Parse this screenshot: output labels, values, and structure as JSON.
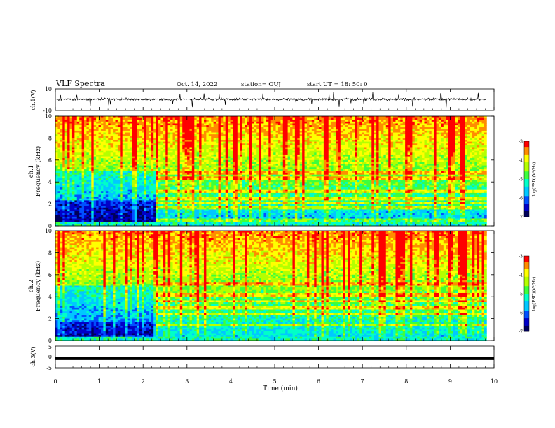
{
  "header": {
    "title": "VLF Spectra",
    "date": "Oct. 14, 2022",
    "station": "station= OUJ",
    "start": "start UT =  18: 50: 0"
  },
  "chart_data": [
    {
      "type": "line",
      "name": "ch1-waveform",
      "ylabel": "ch.1(V)",
      "yticks": [
        "10",
        "-10"
      ],
      "ylim": [
        -10,
        10
      ],
      "xlim": [
        0,
        10
      ],
      "description_values": {
        "baseline": 0,
        "typical_amplitude": 1.5,
        "spike_amplitude": 8
      }
    },
    {
      "type": "heatmap",
      "name": "ch1-spectrogram",
      "ylabel_line1": "ch.1",
      "ylabel_line2": "Frequency (kHz)",
      "xlim": [
        0,
        9.83
      ],
      "ylim": [
        0,
        10
      ],
      "yticks": [
        "0",
        "2",
        "4",
        "6",
        "8",
        "10"
      ],
      "colorbar": {
        "label": "log(PSD)(V²/Hz)",
        "ticks": [
          "-3",
          "-4",
          "-5",
          "-6",
          "-7"
        ],
        "range": [
          -7,
          -3
        ]
      },
      "regime_change_min": 2.25,
      "bands_khz": [
        0.5,
        1.7,
        2.1,
        2.5,
        3.2,
        4.3,
        4.8
      ]
    },
    {
      "type": "heatmap",
      "name": "ch2-spectrogram",
      "ylabel_line1": "ch.2",
      "ylabel_line2": "Frequency (kHz)",
      "xlim": [
        0,
        9.83
      ],
      "ylim": [
        0,
        10
      ],
      "yticks": [
        "0",
        "2",
        "4",
        "6",
        "8",
        "10"
      ],
      "colorbar": {
        "label": "log(PSD)(V²/Hz)",
        "ticks": [
          "-3",
          "-4",
          "-5",
          "-6",
          "-7"
        ],
        "range": [
          -7,
          -3
        ]
      },
      "regime_change_min": 2.25,
      "bands_khz": [
        1.4,
        2.4,
        3.0,
        3.6,
        4.2,
        5.2
      ]
    },
    {
      "type": "line",
      "name": "ch3-waveform",
      "ylabel": "ch.3(V)",
      "yticks": [
        "5",
        "0",
        "-5"
      ],
      "ylim": [
        -5,
        5
      ],
      "xlim": [
        0,
        10
      ],
      "description_values": {
        "level": -0.8
      }
    }
  ],
  "xaxis": {
    "label": "Time (min)",
    "ticks": [
      "0",
      "1",
      "2",
      "3",
      "4",
      "5",
      "6",
      "7",
      "8",
      "9",
      "10"
    ],
    "range": [
      0,
      10
    ]
  },
  "colors": {
    "scale": [
      "#00005a",
      "#0000c8",
      "#0050ff",
      "#00c8ff",
      "#00ffc8",
      "#3cff3c",
      "#b4ff00",
      "#ffff00",
      "#ff8c00",
      "#ff0000"
    ]
  }
}
